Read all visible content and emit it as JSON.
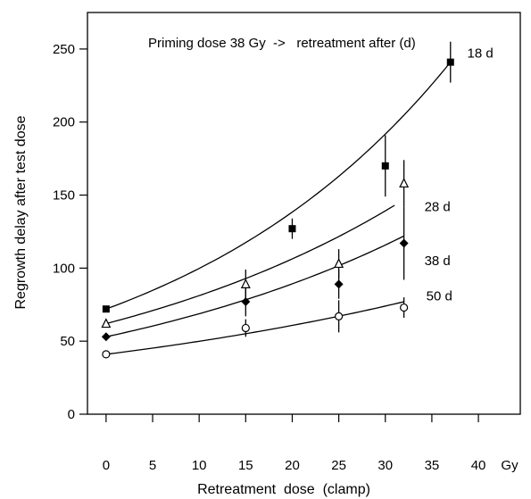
{
  "chart_data": {
    "type": "scatter",
    "title": "",
    "annotation": "Priming dose 38 Gy  ->   retreatment after (d)",
    "xlabel": "Retreatment  dose  (clamp)",
    "ylabel": "Regrowth delay after test dose",
    "x_unit": "Gy",
    "xlim": [
      -2,
      44.5
    ],
    "ylim": [
      0,
      275
    ],
    "x_ticks": [
      0,
      5,
      10,
      15,
      20,
      25,
      30,
      35,
      40
    ],
    "y_ticks": [
      0,
      50,
      100,
      150,
      200,
      250
    ],
    "grid": false,
    "series": [
      {
        "name": "18 d",
        "marker": "filled-square",
        "points": [
          {
            "x": 0,
            "y": 72
          },
          {
            "x": 20,
            "y": 127,
            "err": 7
          },
          {
            "x": 30,
            "y": 170,
            "err": 21
          },
          {
            "x": 37,
            "y": 241,
            "err": 14
          }
        ],
        "fit": {
          "x": [
            0,
            37
          ],
          "y": [
            72,
            241
          ]
        }
      },
      {
        "name": "28 d",
        "marker": "open-triangle",
        "points": [
          {
            "x": 0,
            "y": 62
          },
          {
            "x": 15,
            "y": 89,
            "err": 10
          },
          {
            "x": 25,
            "y": 103,
            "err": 10
          },
          {
            "x": 32,
            "y": 158,
            "err": 16
          }
        ],
        "fit": {
          "x": [
            0,
            31
          ],
          "y": [
            62,
            143
          ]
        }
      },
      {
        "name": "38 d",
        "marker": "filled-diamond",
        "points": [
          {
            "x": 0,
            "y": 53
          },
          {
            "x": 15,
            "y": 77,
            "err": 10
          },
          {
            "x": 25,
            "y": 89,
            "err": 10
          },
          {
            "x": 32,
            "y": 117,
            "err": 25
          }
        ],
        "fit": {
          "x": [
            0,
            32
          ],
          "y": [
            53,
            122
          ]
        }
      },
      {
        "name": "50 d",
        "marker": "open-circle",
        "points": [
          {
            "x": 0,
            "y": 41
          },
          {
            "x": 15,
            "y": 59,
            "err": 6
          },
          {
            "x": 25,
            "y": 67,
            "err": 11
          },
          {
            "x": 32,
            "y": 73,
            "err": 7
          }
        ],
        "fit": {
          "x": [
            0,
            32
          ],
          "y": [
            41,
            77
          ]
        }
      }
    ]
  }
}
